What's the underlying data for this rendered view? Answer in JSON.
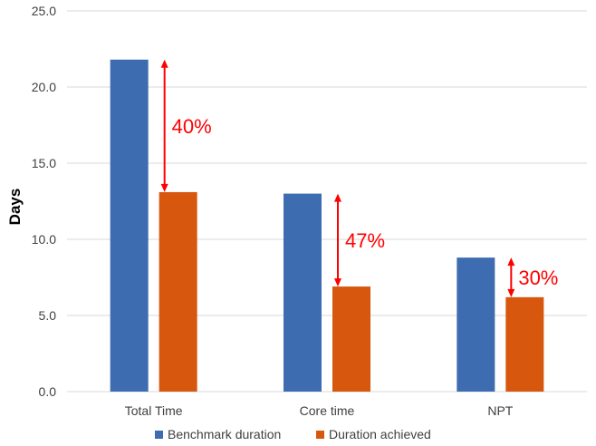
{
  "chart_data": {
    "type": "bar",
    "title": "",
    "xlabel": "",
    "ylabel": "Days",
    "ylim": [
      0,
      25
    ],
    "yticks": [
      0,
      5,
      10,
      15,
      20,
      25
    ],
    "ytick_labels": [
      "0.0",
      "5.0",
      "10.0",
      "15.0",
      "20.0",
      "25.0"
    ],
    "categories": [
      "Total Time",
      "Core time",
      "NPT"
    ],
    "series": [
      {
        "name": "Benchmark duration",
        "values": [
          21.8,
          13.0,
          8.8
        ],
        "color": "#3d6cb1"
      },
      {
        "name": "Duration achieved",
        "values": [
          13.1,
          6.9,
          6.2
        ],
        "color": "#d6570d"
      }
    ],
    "annotations": [
      {
        "text": "40%",
        "category": "Total Time",
        "from": 21.8,
        "to": 13.1
      },
      {
        "text": "47%",
        "category": "Core time",
        "from": 13.0,
        "to": 6.9
      },
      {
        "text": "30%",
        "category": "NPT",
        "from": 8.8,
        "to": 6.2
      }
    ],
    "annotation_color": "#ff0000",
    "grid": true,
    "legend_position": "bottom"
  }
}
